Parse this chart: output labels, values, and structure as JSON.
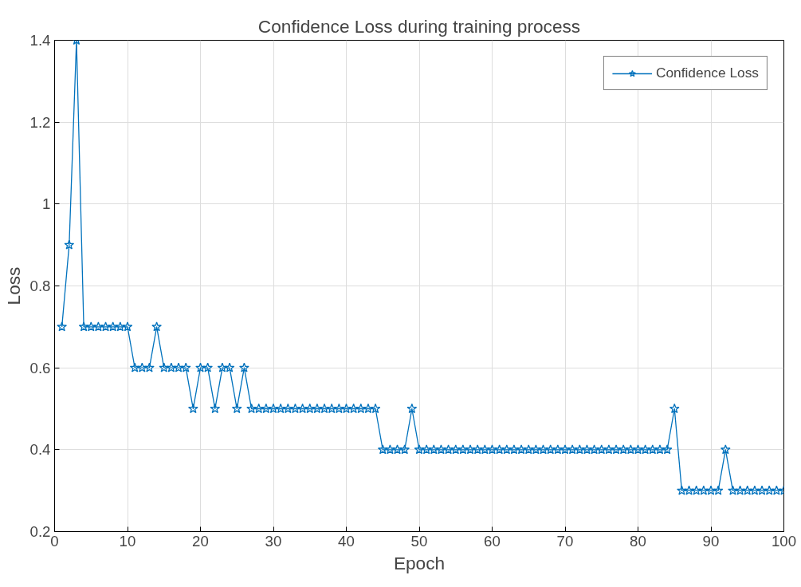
{
  "chart_data": {
    "type": "line",
    "title": "Confidence Loss during training process",
    "xlabel": "Epoch",
    "ylabel": "Loss",
    "x": [
      1,
      2,
      3,
      4,
      5,
      6,
      7,
      8,
      9,
      10,
      11,
      12,
      13,
      14,
      15,
      16,
      17,
      18,
      19,
      20,
      21,
      22,
      23,
      24,
      25,
      26,
      27,
      28,
      29,
      30,
      31,
      32,
      33,
      34,
      35,
      36,
      37,
      38,
      39,
      40,
      41,
      42,
      43,
      44,
      45,
      46,
      47,
      48,
      49,
      50,
      51,
      52,
      53,
      54,
      55,
      56,
      57,
      58,
      59,
      60,
      61,
      62,
      63,
      64,
      65,
      66,
      67,
      68,
      69,
      70,
      71,
      72,
      73,
      74,
      75,
      76,
      77,
      78,
      79,
      80,
      81,
      82,
      83,
      84,
      85,
      86,
      87,
      88,
      89,
      90,
      91,
      92,
      93,
      94,
      95,
      96,
      97,
      98,
      99,
      100
    ],
    "series": [
      {
        "name": "Confidence Loss",
        "color": "#0072bd",
        "values": [
          0.7,
          0.9,
          1.4,
          0.7,
          0.7,
          0.7,
          0.7,
          0.7,
          0.7,
          0.7,
          0.6,
          0.6,
          0.6,
          0.7,
          0.6,
          0.6,
          0.6,
          0.6,
          0.5,
          0.6,
          0.6,
          0.5,
          0.6,
          0.6,
          0.5,
          0.6,
          0.5,
          0.5,
          0.5,
          0.5,
          0.5,
          0.5,
          0.5,
          0.5,
          0.5,
          0.5,
          0.5,
          0.5,
          0.5,
          0.5,
          0.5,
          0.5,
          0.5,
          0.5,
          0.4,
          0.4,
          0.4,
          0.4,
          0.5,
          0.4,
          0.4,
          0.4,
          0.4,
          0.4,
          0.4,
          0.4,
          0.4,
          0.4,
          0.4,
          0.4,
          0.4,
          0.4,
          0.4,
          0.4,
          0.4,
          0.4,
          0.4,
          0.4,
          0.4,
          0.4,
          0.4,
          0.4,
          0.4,
          0.4,
          0.4,
          0.4,
          0.4,
          0.4,
          0.4,
          0.4,
          0.4,
          0.4,
          0.4,
          0.4,
          0.5,
          0.3,
          0.3,
          0.3,
          0.3,
          0.3,
          0.3,
          0.4,
          0.3,
          0.3,
          0.3,
          0.3,
          0.3,
          0.3,
          0.3,
          0.3
        ]
      }
    ],
    "xlim": [
      0,
      100
    ],
    "xticks": [
      0,
      10,
      20,
      30,
      40,
      50,
      60,
      70,
      80,
      90,
      100
    ],
    "ylim": [
      0.2,
      1.4
    ],
    "yticks": [
      0.2,
      0.4,
      0.6,
      0.8,
      {
        "value": 1,
        "label": "1"
      },
      1.2,
      1.4
    ],
    "grid": true,
    "legend": "top right",
    "marker": "star",
    "line_style": "solid"
  }
}
